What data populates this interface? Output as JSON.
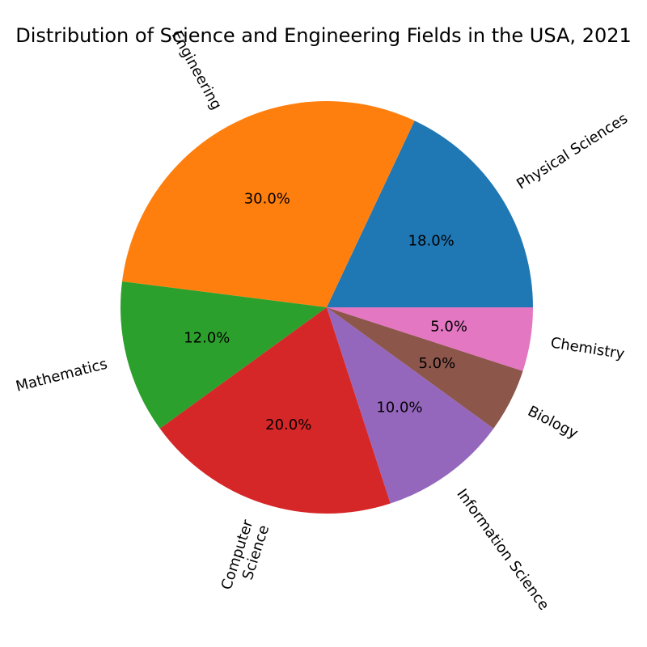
{
  "chart_data": {
    "type": "pie",
    "title": "Distribution of Science and Engineering Fields in the USA, 2021",
    "start_angle_deg": 0,
    "direction": "counterclockwise",
    "label_rotation": "radial",
    "slices": [
      {
        "label": "Physical Sciences",
        "value": 18.0,
        "display": "18.0%",
        "color": "#1f77b4"
      },
      {
        "label": "Engineering",
        "value": 30.0,
        "display": "30.0%",
        "color": "#ff7f0e"
      },
      {
        "label": "Mathematics",
        "value": 12.0,
        "display": "12.0%",
        "color": "#2ca02c"
      },
      {
        "label": "Computer\nScience",
        "value": 20.0,
        "display": "20.0%",
        "color": "#d62728"
      },
      {
        "label": "Information Science",
        "value": 10.0,
        "display": "10.0%",
        "color": "#9467bd"
      },
      {
        "label": "Biology",
        "value": 5.0,
        "display": "5.0%",
        "color": "#8c564b"
      },
      {
        "label": "Chemistry",
        "value": 5.0,
        "display": "5.0%",
        "color": "#e377c2"
      }
    ]
  }
}
